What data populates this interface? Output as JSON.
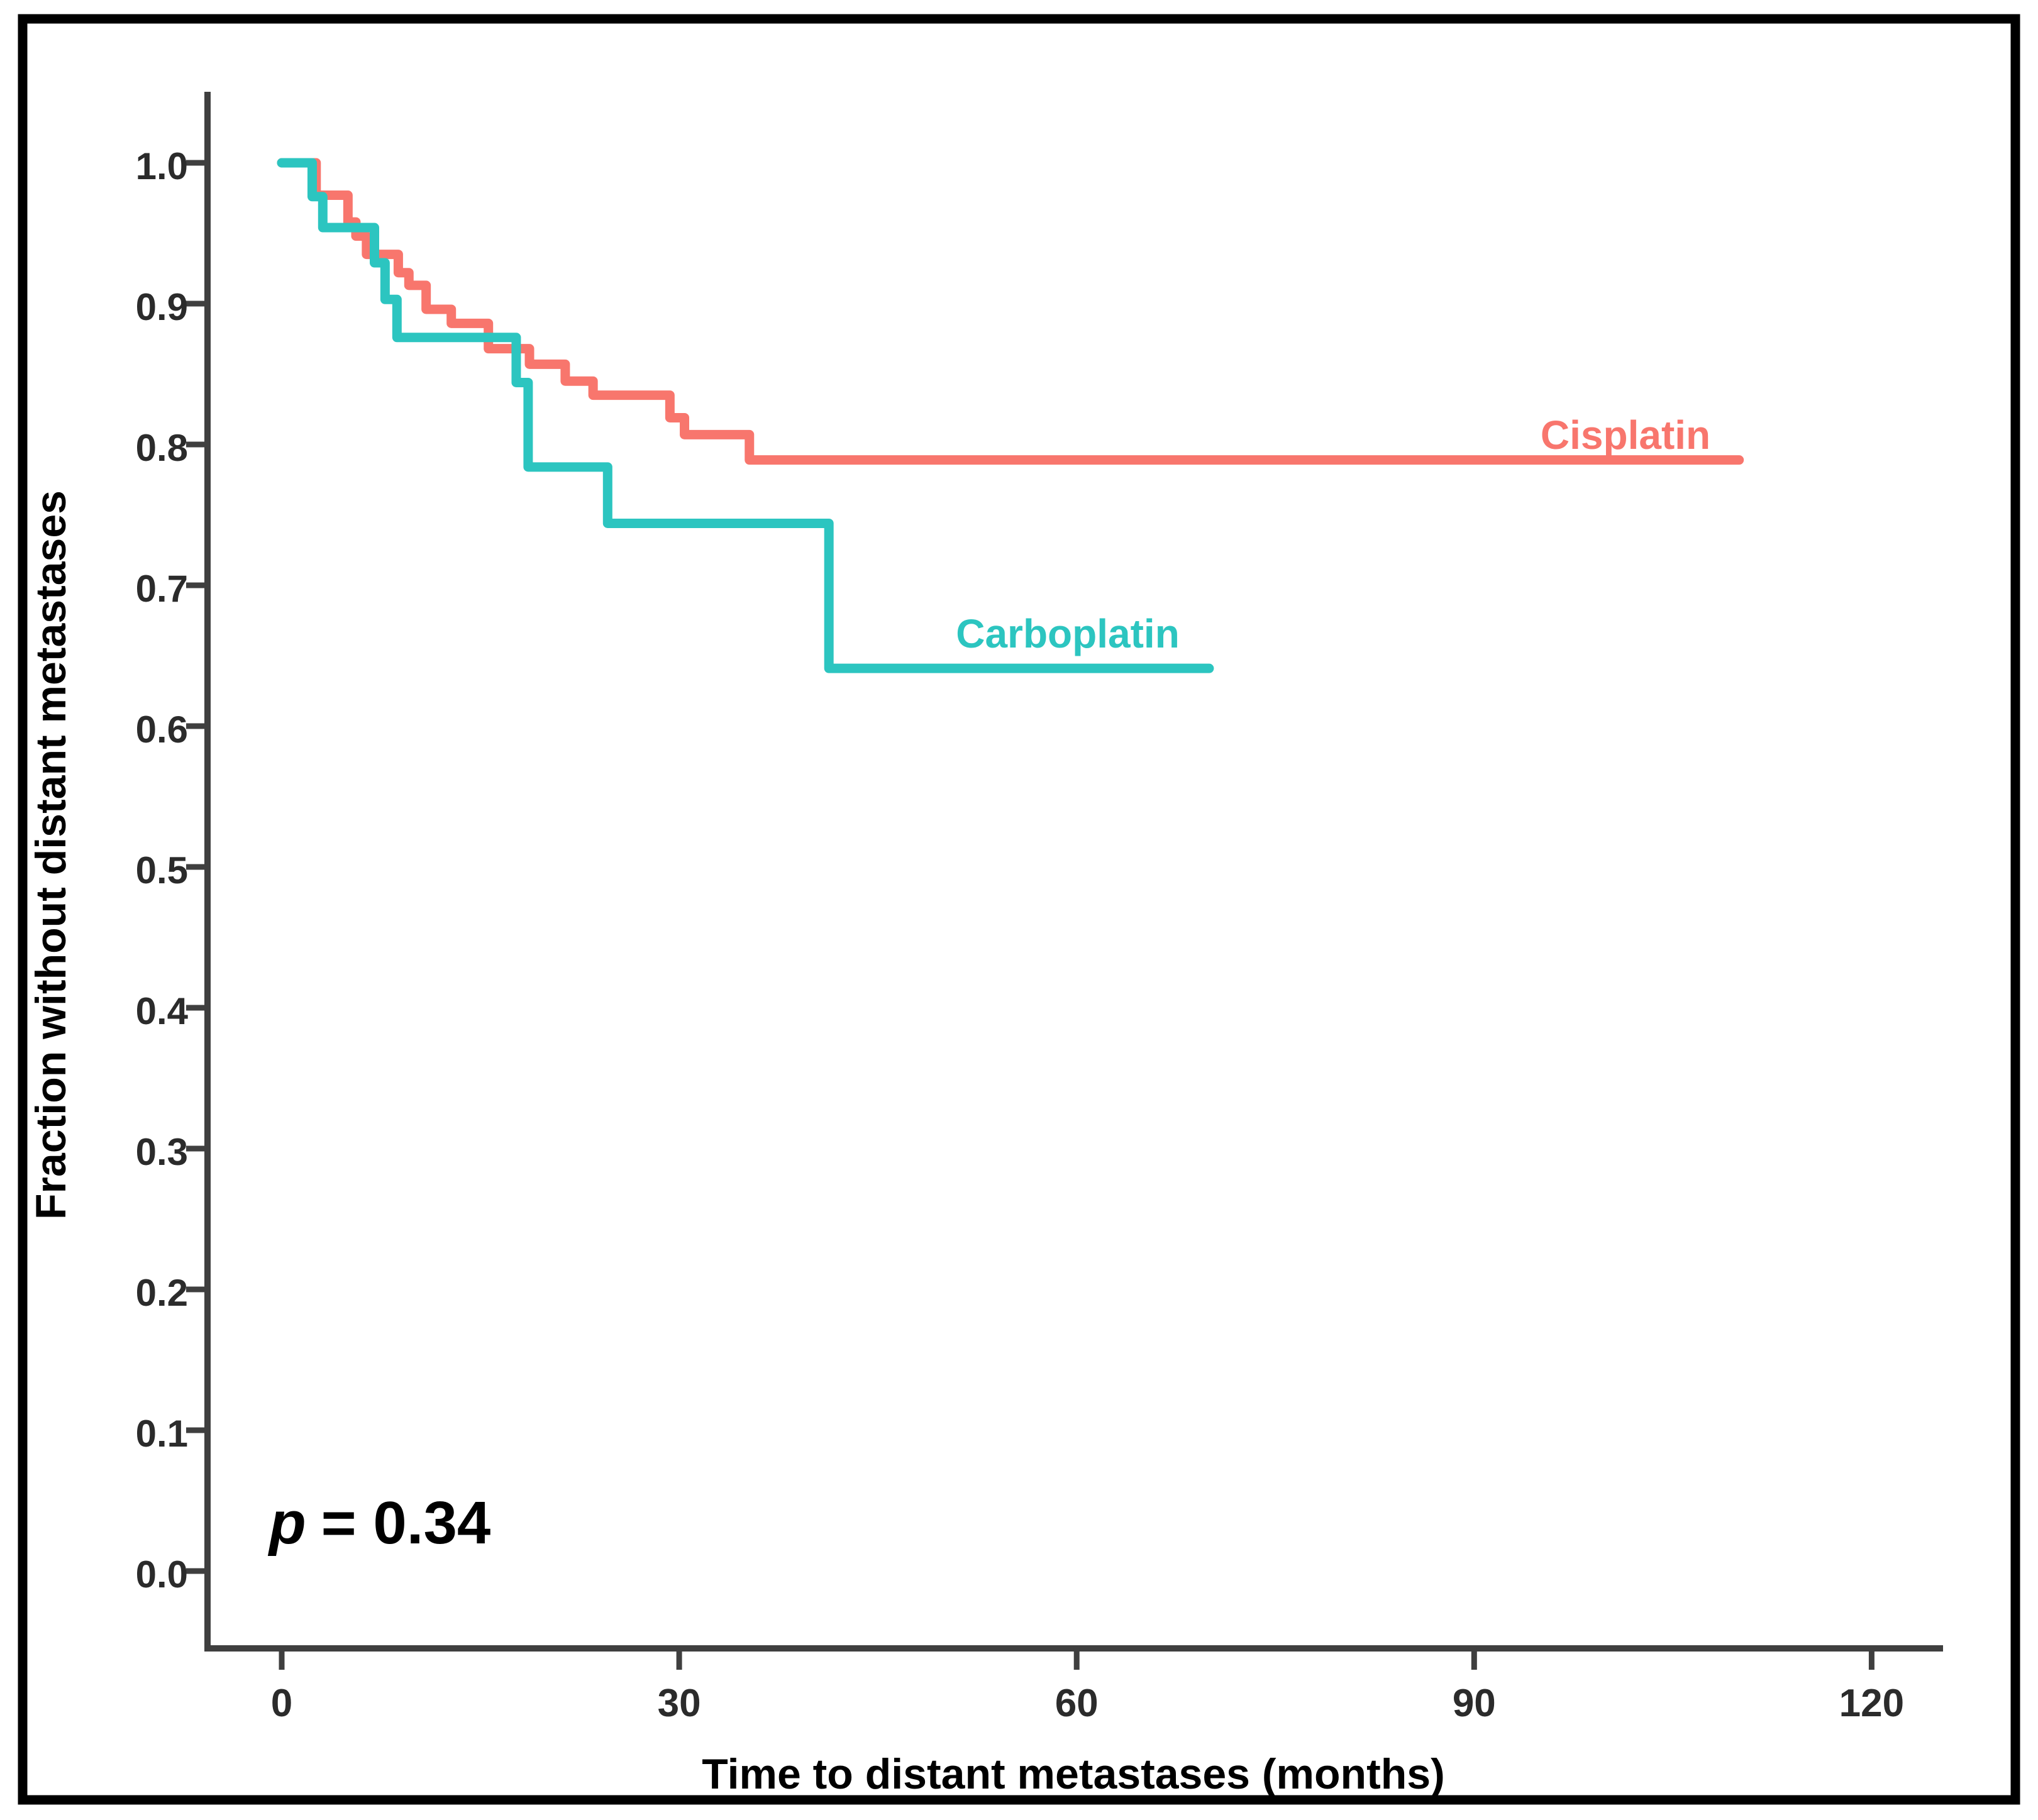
{
  "figure": {
    "background": "#ffffff",
    "border_color": "#000000"
  },
  "chart_data": {
    "type": "line",
    "subtype": "kaplan-meier-step",
    "title": "",
    "xlabel": "Time to distant metastases (months)",
    "ylabel": "Fraction without distant metastases",
    "x_ticks": [
      0,
      30,
      60,
      90,
      120
    ],
    "y_ticks": [
      "1.0",
      "0.9",
      "0.8",
      "0.7",
      "0.6",
      "0.5",
      "0.4",
      "0.3",
      "0.2",
      "0.1",
      "0.0"
    ],
    "xlim": [
      -5.6,
      125.5
    ],
    "ylim": [
      0.0,
      1.05
    ],
    "grid": false,
    "legend_position": "inline-labels",
    "axis_color": "#3f3f3f",
    "annotation": {
      "symbol": "p",
      "value": "= 0.34"
    },
    "series": [
      {
        "name": "Cisplatin",
        "color": "#F8766D",
        "end_time": 110,
        "steps": [
          [
            0,
            1.0
          ],
          [
            2.6,
            0.977
          ],
          [
            5.0,
            0.958
          ],
          [
            5.6,
            0.948
          ],
          [
            6.4,
            0.935
          ],
          [
            8.8,
            0.922
          ],
          [
            9.6,
            0.913
          ],
          [
            10.9,
            0.896
          ],
          [
            12.8,
            0.886
          ],
          [
            15.6,
            0.868
          ],
          [
            18.7,
            0.857
          ],
          [
            21.4,
            0.845
          ],
          [
            23.5,
            0.835
          ],
          [
            29.3,
            0.819
          ],
          [
            30.4,
            0.807
          ],
          [
            35.3,
            0.789
          ]
        ]
      },
      {
        "name": "Carboplatin",
        "color": "#2CC5C0",
        "end_time": 70,
        "steps": [
          [
            0,
            1.0
          ],
          [
            2.3,
            0.976
          ],
          [
            3.1,
            0.954
          ],
          [
            7.0,
            0.929
          ],
          [
            7.8,
            0.903
          ],
          [
            8.7,
            0.876
          ],
          [
            17.7,
            0.844
          ],
          [
            18.6,
            0.784
          ],
          [
            24.6,
            0.744
          ],
          [
            41.3,
            0.641
          ]
        ]
      }
    ]
  }
}
